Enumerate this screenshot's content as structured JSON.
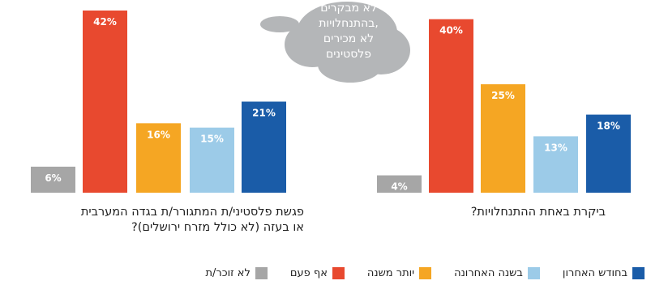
{
  "chart_data": [
    {
      "type": "bar",
      "title": "פגשת פלסטיני/ת המתגורר/ת בגדה המערבית או בעזה (לא כולל מזרח ירושלים)?",
      "title_lines": [
        "פגשת פלסטיני/ת המתגורר/ת בגדה המערבית",
        "או בעזה (לא כולל מזרח ירושלים)?"
      ],
      "categories": [
        "לא זוכר/ת",
        "אף פעם",
        "יותר משנה",
        "בשנה האחרונה",
        "בחודש האחרון"
      ],
      "values": [
        6,
        42,
        16,
        15,
        21
      ],
      "labels": [
        "6%",
        "42%",
        "16%",
        "15%",
        "21%"
      ],
      "unit": "%",
      "ylim": [
        0,
        42
      ],
      "grid": false
    },
    {
      "type": "bar",
      "title": "ביקרת באחת ההתנחלויות?",
      "title_lines": [
        "ביקרת באחת ההתנחלויות?"
      ],
      "categories": [
        "לא זוכר/ת",
        "אף פעם",
        "יותר משנה",
        "בשנה האחרונה",
        "בחודש האחרון"
      ],
      "values": [
        4,
        40,
        25,
        13,
        18
      ],
      "labels": [
        "4%",
        "40%",
        "25%",
        "13%",
        "18%"
      ],
      "unit": "%",
      "ylim": [
        0,
        42
      ],
      "grid": false
    }
  ],
  "callout": {
    "lines": [
      "לא מבקרים",
      "בהתנחלויות,",
      "לא מכירים",
      "פלסטינים"
    ]
  },
  "legend": [
    {
      "label": "בחודש האחרון",
      "color": "#1a5ca8"
    },
    {
      "label": "בשנה האחרונה",
      "color": "#9ccbe8"
    },
    {
      "label": "יותר משנה",
      "color": "#f5a623"
    },
    {
      "label": "אף פעם",
      "color": "#e8492f"
    },
    {
      "label": "לא זוכר/ת",
      "color": "#a6a6a6"
    }
  ],
  "colors": {
    "never": "#e8492f",
    "over_year": "#f5a623",
    "last_year": "#9ccbe8",
    "last_month": "#1a5ca8",
    "dont_remember": "#a6a6a6",
    "cloud": "#b4b6b8"
  }
}
